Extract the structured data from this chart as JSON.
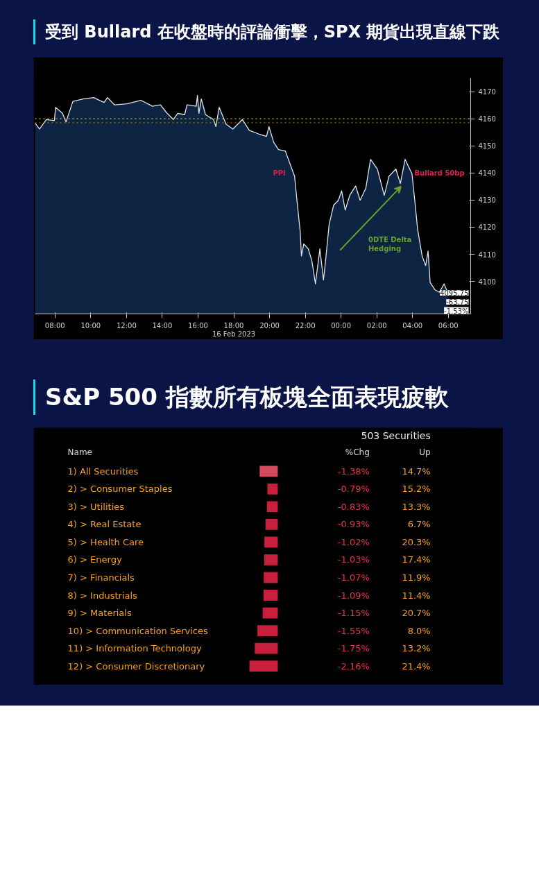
{
  "chart_data": [
    {
      "type": "area",
      "title": "受到 Bullard 在收盤時的評論衝擊，SPX 期貨出現直線下跌",
      "x": [
        "2023-02-16T06:53",
        "2023-02-16T07:08",
        "2023-02-16T07:31",
        "2023-02-16T07:58",
        "2023-02-16T08:02",
        "2023-02-16T08:25",
        "2023-02-16T08:37",
        "2023-02-16T09:00",
        "2023-02-16T09:35",
        "2023-02-16T10:10",
        "2023-02-16T10:29",
        "2023-02-16T10:45",
        "2023-02-16T10:56",
        "2023-02-16T11:20",
        "2023-02-16T12:02",
        "2023-02-16T12:48",
        "2023-02-16T13:27",
        "2023-02-16T13:54",
        "2023-02-16T14:13",
        "2023-02-16T14:37",
        "2023-02-16T14:52",
        "2023-02-16T15:15",
        "2023-02-16T15:23",
        "2023-02-16T15:54",
        "2023-02-16T15:58",
        "2023-02-16T16:03",
        "2023-02-16T16:11",
        "2023-02-16T16:25",
        "2023-02-16T16:52",
        "2023-02-16T17:00",
        "2023-02-16T17:11",
        "2023-02-16T17:34",
        "2023-02-16T17:57",
        "2023-02-16T18:29",
        "2023-02-16T18:52",
        "2023-02-16T19:23",
        "2023-02-16T19:50",
        "2023-02-16T19:58",
        "2023-02-16T20:14",
        "2023-02-16T20:30",
        "2023-02-16T20:53",
        "2023-02-16T21:12",
        "2023-02-16T21:24",
        "2023-02-16T21:32",
        "2023-02-16T21:43",
        "2023-02-16T21:47",
        "2023-02-16T21:55",
        "2023-02-16T22:10",
        "2023-02-16T22:22",
        "2023-02-16T22:34",
        "2023-02-16T22:49",
        "2023-02-16T23:01",
        "2023-02-16T23:08",
        "2023-02-16T23:20",
        "2023-02-16T23:35",
        "2023-02-16T23:51",
        "2023-02-17T00:02",
        "2023-02-17T00:14",
        "2023-02-17T00:29",
        "2023-02-17T00:49",
        "2023-02-17T01:04",
        "2023-02-17T01:23",
        "2023-02-17T01:39",
        "2023-02-17T02:02",
        "2023-02-17T02:25",
        "2023-02-17T02:41",
        "2023-02-17T03:04",
        "2023-02-17T03:19",
        "2023-02-17T03:35",
        "2023-02-17T03:58",
        "2023-02-17T04:09",
        "2023-02-17T04:17",
        "2023-02-17T04:32",
        "2023-02-17T04:44",
        "2023-02-17T04:52",
        "2023-02-17T04:59",
        "2023-02-17T05:15",
        "2023-02-17T05:30",
        "2023-02-17T05:46",
        "2023-02-17T05:58"
      ],
      "series": [
        {
          "color": "#0d2442",
          "values": [
            4158.4,
            4156.2,
            4159.7,
            4159.3,
            4164.2,
            4162.0,
            4158.8,
            4166.4,
            4167.3,
            4167.8,
            4166.8,
            4166.0,
            4167.8,
            4165.1,
            4165.5,
            4166.8,
            4164.6,
            4165.1,
            4162.4,
            4159.7,
            4162.0,
            4161.5,
            4165.1,
            4164.6,
            4168.6,
            4162.0,
            4167.3,
            4161.5,
            4159.7,
            4157.1,
            4164.2,
            4158.0,
            4156.2,
            4159.7,
            4155.7,
            4154.4,
            4153.5,
            4157.1,
            4151.3,
            4148.6,
            4148.1,
            4142.4,
            4138.8,
            4129.9,
            4118.3,
            4109.4,
            4113.8,
            4112.0,
            4107.6,
            4099.1,
            4112.0,
            4100.5,
            4107.6,
            4121.0,
            4128.1,
            4129.9,
            4133.4,
            4126.3,
            4131.7,
            4135.2,
            4129.9,
            4134.3,
            4145.0,
            4141.4,
            4131.7,
            4138.8,
            4141.4,
            4136.1,
            4145.0,
            4139.7,
            4128.1,
            4119.2,
            4109.4,
            4105.8,
            4111.2,
            4099.6,
            4096.9,
            4096.0,
            4099.1,
            4095.75
          ]
        }
      ],
      "xlim": [
        "2023-02-16T06:53",
        "2023-02-17T07:15"
      ],
      "xticks": [
        {
          "value": "2023-02-16T08:00",
          "label": "08:00"
        },
        {
          "value": "2023-02-16T10:00",
          "label": "10:00"
        },
        {
          "value": "2023-02-16T12:00",
          "label": "12:00"
        },
        {
          "value": "2023-02-16T14:00",
          "label": "14:00"
        },
        {
          "value": "2023-02-16T16:00",
          "label": "16:00"
        },
        {
          "value": "2023-02-16T18:00",
          "label": "18:00\n16 Feb 2023"
        },
        {
          "value": "2023-02-16T20:00",
          "label": "20:00"
        },
        {
          "value": "2023-02-16T22:00",
          "label": "22:00"
        },
        {
          "value": "2023-02-17T00:00",
          "label": "00:00"
        },
        {
          "value": "2023-02-17T02:00",
          "label": "02:00"
        },
        {
          "value": "2023-02-17T04:00",
          "label": "04:00"
        },
        {
          "value": "2023-02-17T06:00",
          "label": "06:00"
        }
      ],
      "ylim": [
        4088,
        4175
      ],
      "yticks": [
        4100,
        4110,
        4120,
        4130,
        4140,
        4150,
        4160,
        4170
      ],
      "ref_lines": [
        {
          "axis": "y",
          "value": 4160,
          "color": "#d8c020",
          "line_style": "dotted"
        },
        {
          "axis": "y",
          "value": 4158.5,
          "color": "#c08a30",
          "line_style": "dotted"
        }
      ],
      "annotations": [
        "PPI",
        "Bullard 50bp",
        "0DTE Delta\nHedging",
        "4095.75",
        "-63.75",
        "-1.53%"
      ]
    },
    {
      "type": "bar",
      "orientation": "horizontal",
      "title": "S&P 500 指數所有板塊全面表現疲軟",
      "categories": [
        "1) All Securities",
        "2) > Consumer Staples",
        "3) > Utilities",
        "4) > Real Estate",
        "5) > Health Care",
        "6) > Energy",
        "7) > Financials",
        "8) > Industrials",
        "9) > Materials",
        "10) > Communication Services",
        "11) > Information Technology",
        "12) > Consumer Discretionary"
      ],
      "values": [
        -1.38,
        -0.79,
        -0.83,
        -0.93,
        -1.02,
        -1.03,
        -1.07,
        -1.09,
        -1.15,
        -1.55,
        -1.75,
        -2.16
      ],
      "colors": [
        "#d34a5c",
        "#c8203c",
        "#c8203c",
        "#c8203c",
        "#c8203c",
        "#c8203c",
        "#c8203c",
        "#c8203c",
        "#c8203c",
        "#c8203c",
        "#c8203c",
        "#c8203c"
      ],
      "value_labels": [
        "-1.38%",
        "-0.79%",
        "-0.83%",
        "-0.93%",
        "-1.02%",
        "-1.03%",
        "-1.07%",
        "-1.09%",
        "-1.15%",
        "-1.55%",
        "-1.75%",
        "-2.16%"
      ],
      "xlim": [
        -18.5,
        14.7
      ],
      "annotations": [
        "503 Securities",
        "Name",
        "%Chg",
        "Up",
        "14.7%",
        "15.2%",
        "13.3%",
        "6.7%",
        "20.3%",
        "17.4%",
        "11.9%",
        "11.4%",
        "20.7%",
        "8.0%",
        "13.2%",
        "21.4%"
      ]
    }
  ]
}
